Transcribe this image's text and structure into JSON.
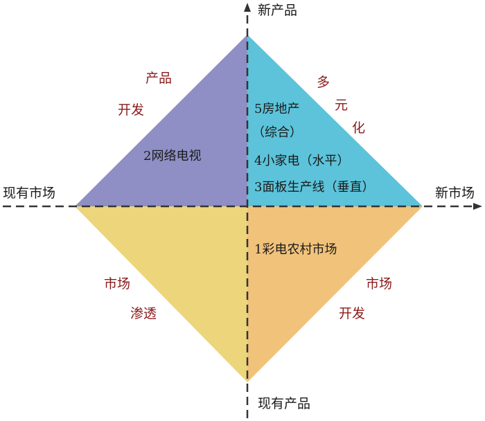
{
  "axes": {
    "top": "新产品",
    "bottom": "现有产品",
    "left": "现有市场",
    "right": "新市场"
  },
  "quadrants": {
    "product_development": {
      "label_line1": "产品",
      "label_line2": "开发",
      "color": "#8f8fc6",
      "items": [
        "2网络电视"
      ]
    },
    "diversification": {
      "label_chars": [
        "多",
        "元",
        "化"
      ],
      "color": "#5cc3da",
      "items": [
        "5房地产",
        "（综合）",
        "4小家电（水平）",
        "3面板生产线（垂直）"
      ]
    },
    "market_penetration": {
      "label_line1": "市场",
      "label_line2": "渗透",
      "color": "#ecd57a"
    },
    "market_development": {
      "label_line1": "市场",
      "label_line2": "开发",
      "color": "#f0c27a",
      "items": [
        "1彩电农村市场"
      ]
    }
  },
  "colors": {
    "axis_line": "#333333",
    "strategy_text": "#8b1a1a"
  }
}
